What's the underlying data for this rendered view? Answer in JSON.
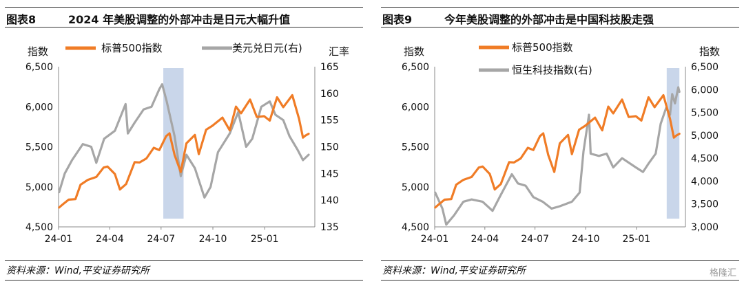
{
  "footer_source": "资料来源：Wind,平安证券研究所",
  "watermark": "格隆汇",
  "panels": [
    {
      "fig_no": "图表8",
      "title": "2024 年美股调整的外部冲击是日元大幅升值",
      "chart_data": {
        "type": "line",
        "left_unit": "指数",
        "right_unit": "汇率",
        "x_ticks": [
          "24-01",
          "24-04",
          "24-07",
          "24-10",
          "25-01"
        ],
        "left_ticks": [
          "4,500",
          "5,000",
          "5,500",
          "6,000",
          "6,500"
        ],
        "right_ticks": [
          "135",
          "140",
          "145",
          "150",
          "155",
          "160",
          "165"
        ],
        "left_ylim": [
          4500,
          6500
        ],
        "right_ylim": [
          135,
          165
        ],
        "x_range": [
          "2024-01-01",
          "2025-03-31"
        ],
        "highlight": {
          "start": "2024-07-05",
          "end": "2024-08-10",
          "color": "#c9d6ea"
        },
        "series": [
          {
            "name": "标普500指数",
            "axis": "left",
            "color": "#f07c26",
            "points": [
              [
                "2024-01-02",
                4742
              ],
              [
                "2024-01-10",
                4790
              ],
              [
                "2024-01-19",
                4840
              ],
              [
                "2024-01-31",
                4846
              ],
              [
                "2024-02-09",
                5026
              ],
              [
                "2024-02-22",
                5087
              ],
              [
                "2024-03-08",
                5123
              ],
              [
                "2024-03-21",
                5241
              ],
              [
                "2024-03-28",
                5254
              ],
              [
                "2024-04-10",
                5160
              ],
              [
                "2024-04-19",
                4967
              ],
              [
                "2024-04-30",
                5035
              ],
              [
                "2024-05-15",
                5308
              ],
              [
                "2024-05-24",
                5304
              ],
              [
                "2024-06-05",
                5354
              ],
              [
                "2024-06-18",
                5487
              ],
              [
                "2024-06-28",
                5460
              ],
              [
                "2024-07-10",
                5633
              ],
              [
                "2024-07-16",
                5667
              ],
              [
                "2024-07-25",
                5399
              ],
              [
                "2024-08-05",
                5186
              ],
              [
                "2024-08-15",
                5543
              ],
              [
                "2024-08-30",
                5648
              ],
              [
                "2024-09-06",
                5408
              ],
              [
                "2024-09-19",
                5713
              ],
              [
                "2024-09-30",
                5762
              ],
              [
                "2024-10-18",
                5864
              ],
              [
                "2024-10-31",
                5705
              ],
              [
                "2024-11-11",
                6001
              ],
              [
                "2024-11-20",
                5917
              ],
              [
                "2024-12-06",
                6090
              ],
              [
                "2024-12-18",
                5872
              ],
              [
                "2024-12-31",
                5882
              ],
              [
                "2025-01-10",
                5827
              ],
              [
                "2025-01-23",
                6118
              ],
              [
                "2025-02-03",
                5994
              ],
              [
                "2025-02-19",
                6144
              ],
              [
                "2025-03-03",
                5849
              ],
              [
                "2025-03-10",
                5614
              ],
              [
                "2025-03-14",
                5638
              ],
              [
                "2025-03-20",
                5662
              ]
            ]
          },
          {
            "name": "美元兑日元(右)",
            "axis": "right",
            "color": "#a6a6a6",
            "points": [
              [
                "2024-01-02",
                141.5
              ],
              [
                "2024-01-12",
                145.0
              ],
              [
                "2024-01-25",
                147.5
              ],
              [
                "2024-02-13",
                150.5
              ],
              [
                "2024-02-28",
                150.0
              ],
              [
                "2024-03-08",
                147.0
              ],
              [
                "2024-03-22",
                151.5
              ],
              [
                "2024-04-10",
                153.0
              ],
              [
                "2024-04-29",
                158.0
              ],
              [
                "2024-05-03",
                152.5
              ],
              [
                "2024-05-15",
                154.5
              ],
              [
                "2024-05-31",
                157.0
              ],
              [
                "2024-06-14",
                157.5
              ],
              [
                "2024-06-28",
                160.8
              ],
              [
                "2024-07-03",
                161.7
              ],
              [
                "2024-07-11",
                158.5
              ],
              [
                "2024-07-25",
                152.0
              ],
              [
                "2024-08-05",
                144.5
              ],
              [
                "2024-08-15",
                148.5
              ],
              [
                "2024-08-30",
                146.0
              ],
              [
                "2024-09-16",
                140.5
              ],
              [
                "2024-09-27",
                142.5
              ],
              [
                "2024-10-10",
                149.0
              ],
              [
                "2024-10-31",
                152.5
              ],
              [
                "2024-11-15",
                156.5
              ],
              [
                "2024-11-29",
                150.0
              ],
              [
                "2024-12-10",
                151.5
              ],
              [
                "2024-12-26",
                157.5
              ],
              [
                "2025-01-10",
                158.5
              ],
              [
                "2025-01-20",
                156.0
              ],
              [
                "2025-02-03",
                155.0
              ],
              [
                "2025-02-14",
                152.0
              ],
              [
                "2025-02-28",
                149.5
              ],
              [
                "2025-03-10",
                147.5
              ],
              [
                "2025-03-20",
                148.5
              ]
            ]
          }
        ]
      }
    },
    {
      "fig_no": "图表9",
      "title": "今年美股调整的外部冲击是中国科技股走强",
      "chart_data": {
        "type": "line",
        "left_unit": "指数",
        "right_unit": "指数",
        "x_ticks": [
          "24-01",
          "24-04",
          "24-07",
          "24-10",
          "25-01"
        ],
        "left_ticks": [
          "4,500",
          "5,000",
          "5,500",
          "6,000",
          "6,500"
        ],
        "right_ticks": [
          "3,000",
          "3,500",
          "4,000",
          "4,500",
          "5,000",
          "5,500",
          "6,000",
          "6,500"
        ],
        "left_ylim": [
          4500,
          6500
        ],
        "right_ylim": [
          3000,
          6500
        ],
        "x_range": [
          "2024-01-01",
          "2025-03-31"
        ],
        "highlight": {
          "start": "2025-02-25",
          "end": "2025-03-20",
          "color": "#c9d6ea"
        },
        "series": [
          {
            "name": "标普500指数",
            "axis": "left",
            "color": "#f07c26",
            "points": [
              [
                "2024-01-02",
                4742
              ],
              [
                "2024-01-10",
                4790
              ],
              [
                "2024-01-19",
                4840
              ],
              [
                "2024-01-31",
                4846
              ],
              [
                "2024-02-09",
                5026
              ],
              [
                "2024-02-22",
                5087
              ],
              [
                "2024-03-08",
                5123
              ],
              [
                "2024-03-21",
                5241
              ],
              [
                "2024-03-28",
                5254
              ],
              [
                "2024-04-10",
                5160
              ],
              [
                "2024-04-19",
                4967
              ],
              [
                "2024-04-30",
                5035
              ],
              [
                "2024-05-15",
                5308
              ],
              [
                "2024-05-24",
                5304
              ],
              [
                "2024-06-05",
                5354
              ],
              [
                "2024-06-18",
                5487
              ],
              [
                "2024-06-28",
                5460
              ],
              [
                "2024-07-10",
                5633
              ],
              [
                "2024-07-16",
                5667
              ],
              [
                "2024-07-25",
                5399
              ],
              [
                "2024-08-05",
                5186
              ],
              [
                "2024-08-15",
                5543
              ],
              [
                "2024-08-30",
                5648
              ],
              [
                "2024-09-06",
                5408
              ],
              [
                "2024-09-19",
                5713
              ],
              [
                "2024-09-30",
                5762
              ],
              [
                "2024-10-18",
                5864
              ],
              [
                "2024-10-31",
                5705
              ],
              [
                "2024-11-11",
                6001
              ],
              [
                "2024-11-20",
                5917
              ],
              [
                "2024-12-06",
                6090
              ],
              [
                "2024-12-18",
                5872
              ],
              [
                "2024-12-31",
                5882
              ],
              [
                "2025-01-10",
                5827
              ],
              [
                "2025-01-23",
                6118
              ],
              [
                "2025-02-03",
                5994
              ],
              [
                "2025-02-19",
                6144
              ],
              [
                "2025-03-03",
                5849
              ],
              [
                "2025-03-10",
                5614
              ],
              [
                "2025-03-14",
                5638
              ],
              [
                "2025-03-20",
                5662
              ]
            ]
          },
          {
            "name": "恒生科技指数(右)",
            "axis": "right",
            "color": "#a6a6a6",
            "points": [
              [
                "2024-01-02",
                3750
              ],
              [
                "2024-01-15",
                3400
              ],
              [
                "2024-01-22",
                3050
              ],
              [
                "2024-02-05",
                3250
              ],
              [
                "2024-02-22",
                3550
              ],
              [
                "2024-03-08",
                3600
              ],
              [
                "2024-03-28",
                3550
              ],
              [
                "2024-04-15",
                3350
              ],
              [
                "2024-04-30",
                3700
              ],
              [
                "2024-05-20",
                4150
              ],
              [
                "2024-05-31",
                3950
              ],
              [
                "2024-06-14",
                3900
              ],
              [
                "2024-06-28",
                3650
              ],
              [
                "2024-07-15",
                3550
              ],
              [
                "2024-07-31",
                3400
              ],
              [
                "2024-08-15",
                3450
              ],
              [
                "2024-09-06",
                3550
              ],
              [
                "2024-09-20",
                3750
              ],
              [
                "2024-09-27",
                4650
              ],
              [
                "2024-10-07",
                5450
              ],
              [
                "2024-10-10",
                4600
              ],
              [
                "2024-10-25",
                4550
              ],
              [
                "2024-11-08",
                4600
              ],
              [
                "2024-11-20",
                4300
              ],
              [
                "2024-12-06",
                4500
              ],
              [
                "2024-12-31",
                4300
              ],
              [
                "2025-01-13",
                4200
              ],
              [
                "2025-01-24",
                4400
              ],
              [
                "2025-02-05",
                4600
              ],
              [
                "2025-02-14",
                5250
              ],
              [
                "2025-02-24",
                5600
              ],
              [
                "2025-03-03",
                5450
              ],
              [
                "2025-03-07",
                5900
              ],
              [
                "2025-03-12",
                5700
              ],
              [
                "2025-03-18",
                6050
              ],
              [
                "2025-03-20",
                5950
              ]
            ]
          }
        ]
      }
    }
  ]
}
